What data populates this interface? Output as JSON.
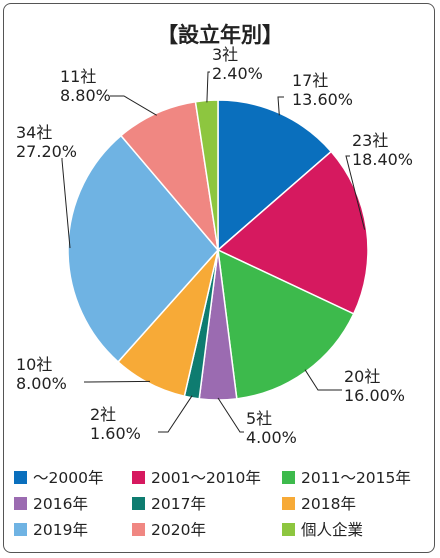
{
  "chart_data": {
    "type": "pie",
    "title": "【設立年別】",
    "slices": [
      {
        "name": "～2000年",
        "count_label": "17社",
        "pct_label": "13.60%",
        "value": 13.6,
        "color": "#0a6fbd"
      },
      {
        "name": "2001～2010年",
        "count_label": "23社",
        "pct_label": "18.40%",
        "value": 18.4,
        "color": "#d6195f"
      },
      {
        "name": "2011～2015年",
        "count_label": "20社",
        "pct_label": "16.00%",
        "value": 16.0,
        "color": "#3dba4c"
      },
      {
        "name": "2016年",
        "count_label": "5社",
        "pct_label": "4.00%",
        "value": 4.0,
        "color": "#9b6bb1"
      },
      {
        "name": "2017年",
        "count_label": "2社",
        "pct_label": "1.60%",
        "value": 1.6,
        "color": "#0e7c70"
      },
      {
        "name": "2018年",
        "count_label": "10社",
        "pct_label": "8.00%",
        "value": 8.0,
        "color": "#f7aa37"
      },
      {
        "name": "2019年",
        "count_label": "34社",
        "pct_label": "27.20%",
        "value": 27.2,
        "color": "#6fb3e3"
      },
      {
        "name": "2020年",
        "count_label": "11社",
        "pct_label": "8.80%",
        "value": 8.8,
        "color": "#f08782"
      },
      {
        "name": "個人企業",
        "count_label": "3社",
        "pct_label": "2.40%",
        "value": 2.4,
        "color": "#8dc63f"
      }
    ],
    "start_angle": "12 o'clock",
    "direction": "clockwise",
    "legend": "bottom"
  }
}
